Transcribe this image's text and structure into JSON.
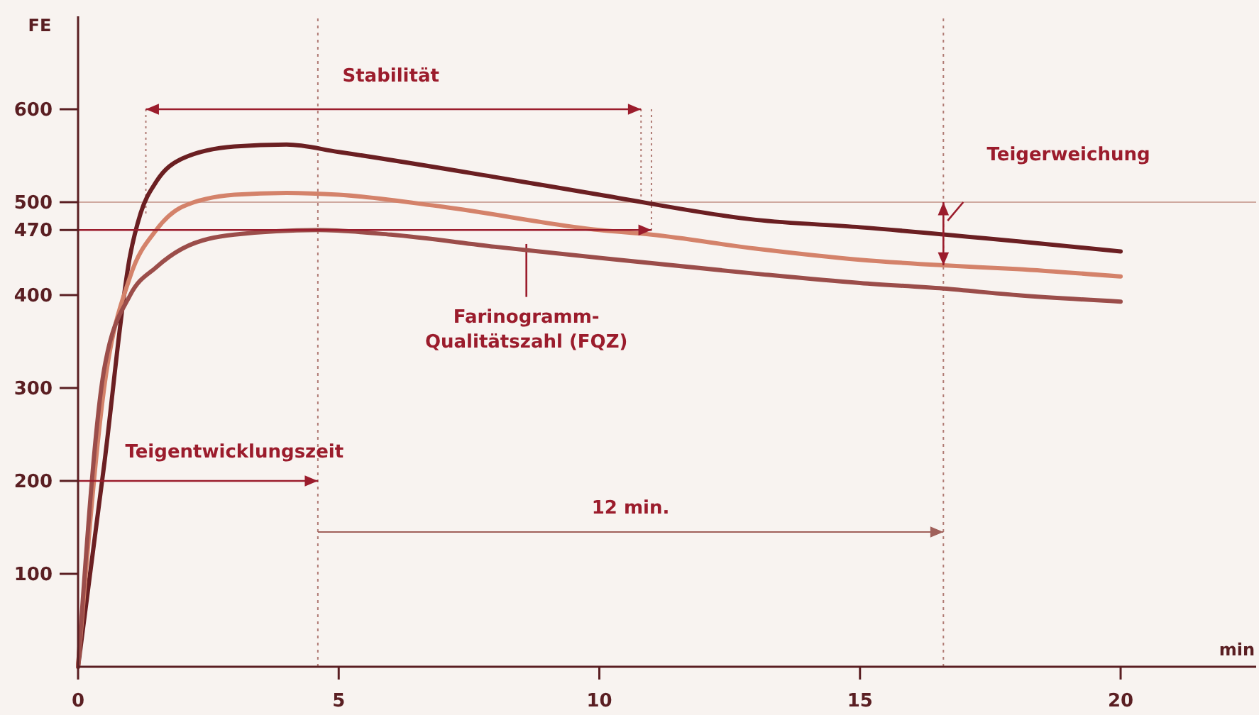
{
  "chart_data": {
    "type": "line",
    "xlabel": "min",
    "ylabel": "FE",
    "xlim": [
      0,
      22.6
    ],
    "xticks": [
      0,
      5,
      10,
      15,
      20
    ],
    "ylim": [
      0,
      700
    ],
    "yticks": [
      100,
      200,
      300,
      400,
      470,
      500,
      600
    ],
    "line_style": "solid",
    "ref_lines": [
      {
        "axis": "y",
        "value": 500,
        "color": "#cfa9a0"
      },
      {
        "axis": "x",
        "value": 4.6,
        "color": "#b07a74",
        "line_style": "dotted"
      },
      {
        "axis": "x",
        "value": 16.6,
        "color": "#b07a74",
        "line_style": "dotted"
      }
    ],
    "series": [
      {
        "color": "#6b1f22",
        "x": [
          0,
          0.5,
          1,
          1.2,
          1.5,
          2,
          3,
          4,
          5,
          8,
          10,
          13,
          15,
          18,
          20
        ],
        "values": [
          0,
          217,
          443,
          488,
          522,
          547,
          560,
          562,
          554,
          527,
          508,
          481,
          473,
          458,
          447
        ]
      },
      {
        "color": "#d4826a",
        "x": [
          0,
          0.5,
          1,
          1.5,
          2,
          3,
          4,
          5,
          7,
          10,
          11,
          13,
          15,
          16.6,
          18,
          20
        ],
        "values": [
          0,
          300,
          420,
          470,
          495,
          508,
          510,
          508,
          495,
          470,
          465,
          450,
          438,
          432,
          428,
          420
        ]
      },
      {
        "color": "#9b4d4a",
        "x": [
          0,
          0.5,
          1,
          1.5,
          2,
          3,
          4.6,
          6,
          8,
          10,
          13,
          15,
          16.6,
          18,
          20
        ],
        "values": [
          0,
          320,
          400,
          430,
          450,
          465,
          470,
          465,
          452,
          440,
          423,
          413,
          407,
          400,
          393
        ]
      }
    ],
    "annotations": [
      "Stabilität",
      "Teigerweichung",
      "Farinogramm-\nQualitätszahl (FQZ)",
      "Teigentwicklungszeit",
      "12 min."
    ]
  }
}
